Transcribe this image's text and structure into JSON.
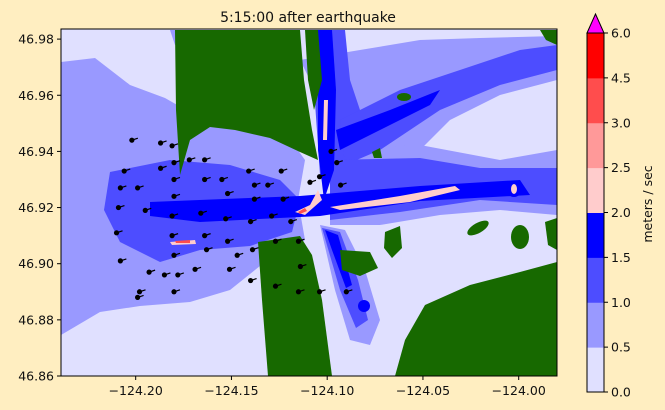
{
  "chart_data": {
    "type": "heatmap",
    "title": "5:15:00 after earthquake",
    "xlabel": "",
    "ylabel": "",
    "xlim": [
      -124.239,
      -123.98
    ],
    "ylim": [
      46.86,
      46.9836
    ],
    "xticks": [
      "−124.20",
      "−124.15",
      "−124.10",
      "−124.05",
      "−124.00"
    ],
    "xtick_values": [
      -124.2,
      -124.15,
      -124.1,
      -124.05,
      -124.0
    ],
    "yticks": [
      "46.86",
      "46.88",
      "46.90",
      "46.92",
      "46.94",
      "46.96",
      "46.98"
    ],
    "ytick_values": [
      46.86,
      46.88,
      46.9,
      46.92,
      46.94,
      46.96,
      46.98
    ],
    "grid": false,
    "land_color": "#176900",
    "colorbar": {
      "label": "meters / sec",
      "bounds": [
        0,
        0.5,
        1.0,
        1.5,
        2.0,
        2.5,
        3.0,
        4.5,
        6.0
      ],
      "tick_labels": [
        "0.0",
        "0.5",
        "1.0",
        "1.5",
        "2.0",
        "2.5",
        "3.0",
        "4.5",
        "6.0"
      ],
      "colors": [
        "#e0e0ff",
        "#9999ff",
        "#4d4dff",
        "#0000ff",
        "#ffcccc",
        "#ff9999",
        "#ff4d4d",
        "#ff0000"
      ],
      "extend_over_color": "#ff00ff",
      "extend": "max"
    },
    "quiver_points": [
      [
        -124.202,
        46.944
      ],
      [
        -124.206,
        46.933
      ],
      [
        -124.208,
        46.927
      ],
      [
        -124.209,
        46.92
      ],
      [
        -124.21,
        46.911
      ],
      [
        -124.208,
        46.901
      ],
      [
        -124.199,
        46.927
      ],
      [
        -124.195,
        46.919
      ],
      [
        -124.187,
        46.943
      ],
      [
        -124.187,
        46.934
      ],
      [
        -124.181,
        46.942
      ],
      [
        -124.18,
        46.936
      ],
      [
        -124.18,
        46.93
      ],
      [
        -124.18,
        46.924
      ],
      [
        -124.181,
        46.917
      ],
      [
        -124.181,
        46.91
      ],
      [
        -124.18,
        46.903
      ],
      [
        -124.178,
        46.896
      ],
      [
        -124.185,
        46.896
      ],
      [
        -124.193,
        46.897
      ],
      [
        -124.172,
        46.937
      ],
      [
        -124.164,
        46.937
      ],
      [
        -124.164,
        46.93
      ],
      [
        -124.166,
        46.918
      ],
      [
        -124.164,
        46.91
      ],
      [
        -124.163,
        46.905
      ],
      [
        -124.155,
        46.93
      ],
      [
        -124.152,
        46.925
      ],
      [
        -124.153,
        46.916
      ],
      [
        -124.152,
        46.908
      ],
      [
        -124.151,
        46.898
      ],
      [
        -124.141,
        46.933
      ],
      [
        -124.138,
        46.928
      ],
      [
        -124.138,
        46.923
      ],
      [
        -124.14,
        46.915
      ],
      [
        -124.139,
        46.905
      ],
      [
        -124.14,
        46.894
      ],
      [
        -124.131,
        46.928
      ],
      [
        -124.129,
        46.917
      ],
      [
        -124.127,
        46.908
      ],
      [
        -124.124,
        46.933
      ],
      [
        -124.123,
        46.923
      ],
      [
        -124.119,
        46.915
      ],
      [
        -124.115,
        46.908
      ],
      [
        -124.114,
        46.899
      ],
      [
        -124.115,
        46.89
      ],
      [
        -124.104,
        46.89
      ],
      [
        -124.127,
        46.892
      ],
      [
        -124.09,
        46.89
      ],
      [
        -124.109,
        46.929
      ],
      [
        -124.104,
        46.931
      ],
      [
        -124.098,
        46.94
      ],
      [
        -124.095,
        46.936
      ],
      [
        -124.093,
        46.928
      ],
      [
        -124.198,
        46.89
      ],
      [
        -124.199,
        46.888
      ],
      [
        -124.18,
        46.89
      ],
      [
        -124.169,
        46.898
      ],
      [
        -124.147,
        46.903
      ]
    ]
  }
}
